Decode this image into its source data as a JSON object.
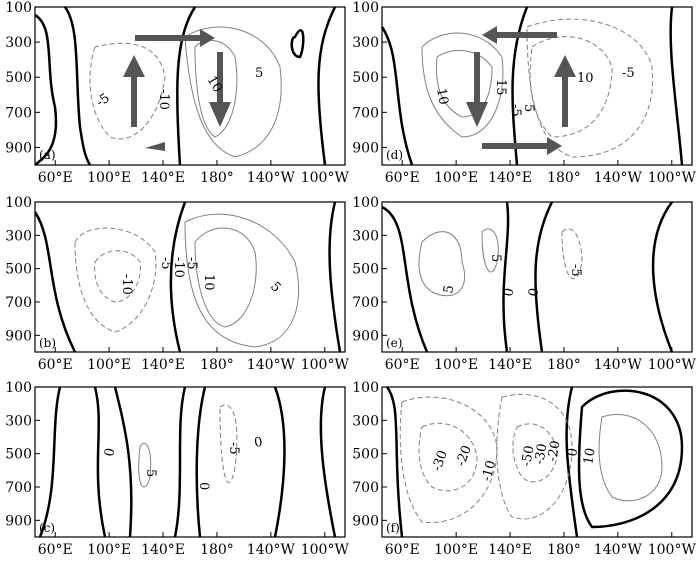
{
  "chart_data": [
    {
      "panel_label": "(a)",
      "contour_labels": [
        "-5",
        "-10",
        "5",
        "10"
      ],
      "circulation_arrows": [
        "eastward",
        "downward",
        "westward",
        "upward"
      ]
    },
    {
      "panel_label": "(b)",
      "contour_labels": [
        "-10",
        "-5",
        "-10",
        "-5",
        "10",
        "5"
      ]
    },
    {
      "panel_label": "(c)",
      "contour_labels": [
        "0",
        "5",
        "-5",
        "0",
        "0"
      ]
    },
    {
      "panel_label": "(d)",
      "contour_labels": [
        "15",
        "10",
        "-5",
        "5",
        "10",
        "-5"
      ],
      "circulation_arrows": [
        "westward",
        "downward",
        "eastward",
        "upward"
      ]
    },
    {
      "panel_label": "(e)",
      "contour_labels": [
        "5",
        "5",
        "0",
        "0",
        "-5"
      ]
    },
    {
      "panel_label": "(f)",
      "contour_labels": [
        "-30",
        "-20",
        "-10",
        "-50",
        "-30",
        "-20",
        "0",
        "10"
      ]
    }
  ],
  "axes": {
    "type": "contour",
    "y_ticks": [
      "100",
      "300",
      "500",
      "700",
      "900"
    ],
    "y_values": [
      100,
      300,
      500,
      700,
      900
    ],
    "x_ticks": [
      "60°E",
      "100°E",
      "140°E",
      "180°",
      "140°W",
      "100°W"
    ],
    "x_values": [
      60,
      100,
      140,
      180,
      220,
      260
    ],
    "x_range": [
      45,
      275
    ],
    "y_range": [
      100,
      1000
    ]
  },
  "colors": {
    "zero_contour": "#000000",
    "positive_contour": "#808080",
    "negative_contour": "#808080",
    "arrow": "#555555"
  }
}
